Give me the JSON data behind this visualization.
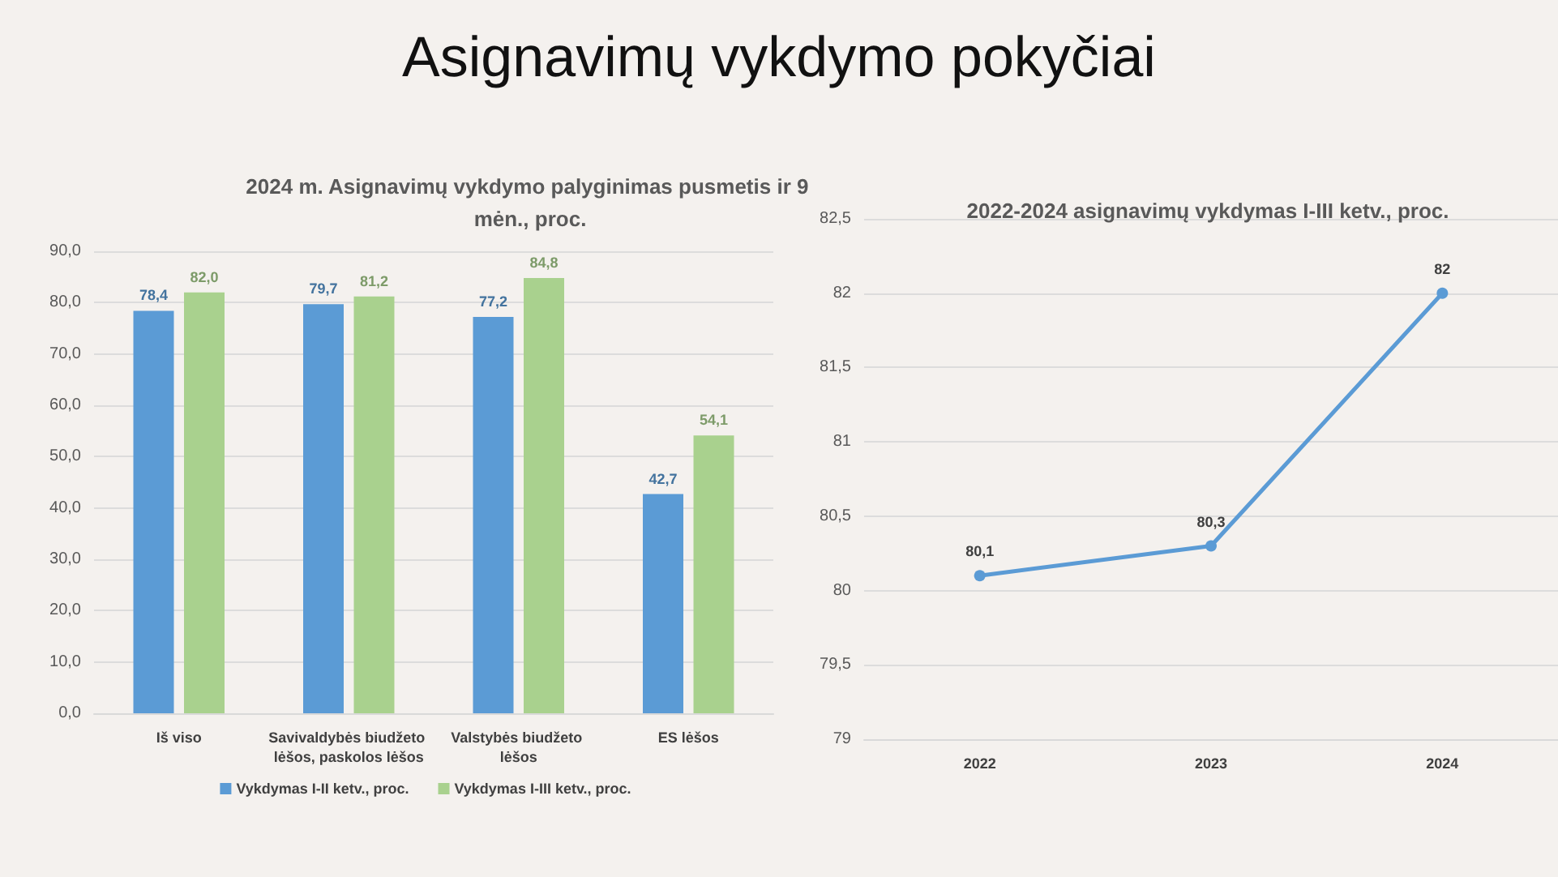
{
  "chart_data": [
    {
      "type": "other",
      "title": "Asignavimų vykdymo pokyčiai"
    },
    {
      "type": "bar",
      "title": "2024 m. Asignavimų vykdymo palyginimas pusmetis ir 9 mėn., proc.",
      "categories": [
        "Iš viso",
        "Savivaldybės biudžeto lėšos, paskolos lėšos",
        "Valstybės biudžeto lėšos",
        "ES lėšos"
      ],
      "series": [
        {
          "name": "Vykdymas I-II ketv., proc.",
          "color": "#5b9bd5",
          "values": [
            78.4,
            79.7,
            77.2,
            42.7
          ],
          "value_labels": [
            "78,4",
            "79,7",
            "77,2",
            "42,7"
          ]
        },
        {
          "name": "Vykdymas I-III ketv., proc.",
          "color": "#a9d18e",
          "values": [
            82.0,
            81.2,
            84.8,
            54.1
          ],
          "value_labels": [
            "82,0",
            "81,2",
            "84,8",
            "54,1"
          ]
        }
      ],
      "ylim": [
        0,
        90
      ],
      "yticks": [
        {
          "value": 0,
          "label": "0,0"
        },
        {
          "value": 10,
          "label": "10,0"
        },
        {
          "value": 20,
          "label": "20,0"
        },
        {
          "value": 30,
          "label": "30,0"
        },
        {
          "value": 40,
          "label": "40,0"
        },
        {
          "value": 50,
          "label": "50,0"
        },
        {
          "value": 60,
          "label": "60,0"
        },
        {
          "value": 70,
          "label": "70,0"
        },
        {
          "value": 80,
          "label": "80,0"
        },
        {
          "value": 90,
          "label": "90,0"
        }
      ],
      "grid": "y",
      "legend": "bottom"
    },
    {
      "type": "line",
      "title": "2022-2024 asignavimų vykdymas I-III ketv., proc.",
      "categories": [
        "2022",
        "2023",
        "2024"
      ],
      "series": [
        {
          "color": "#5b9bd5",
          "values": [
            80.1,
            80.3,
            82
          ],
          "value_labels": [
            "80,1",
            "80,3",
            "82"
          ]
        }
      ],
      "ylim": [
        79,
        82.5
      ],
      "yticks": [
        79,
        {
          "value": 79.5,
          "label": "79,5"
        },
        80,
        {
          "value": 80.5,
          "label": "80,5"
        },
        81,
        {
          "value": 81.5,
          "label": "81,5"
        },
        82,
        {
          "value": 82.5,
          "label": "82,5"
        }
      ],
      "grid": "y",
      "marker": "circle",
      "line_style": "solid"
    }
  ]
}
